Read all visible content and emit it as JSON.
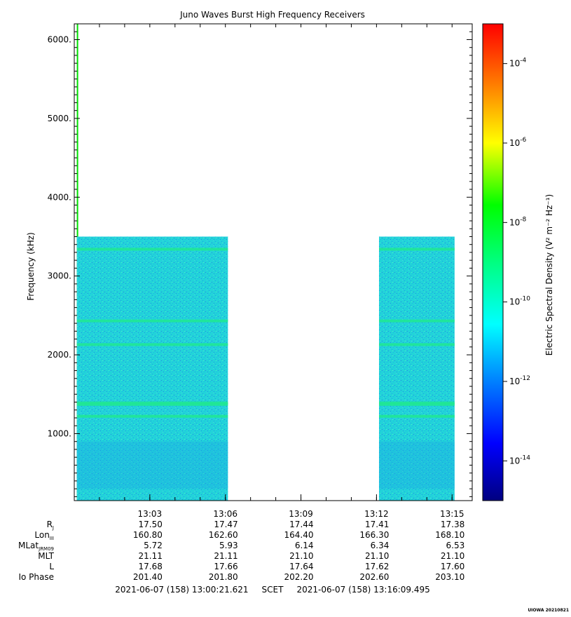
{
  "chart_data": {
    "type": "heatmap",
    "title": "Juno Waves Burst High Frequency Receivers",
    "ylabel": "Frequency (kHz)",
    "ylim": [
      150,
      6200
    ],
    "y_ticks": [
      {
        "value": 1000,
        "label": "1000."
      },
      {
        "value": 2000,
        "label": "2000."
      },
      {
        "value": 3000,
        "label": "3000."
      },
      {
        "value": 4000,
        "label": "4000."
      },
      {
        "value": 5000,
        "label": "5000."
      },
      {
        "value": 6000,
        "label": "6000."
      }
    ],
    "time_range": [
      "13:00:21.621",
      "13:16:09.495"
    ],
    "x_ticks": [
      "13:03",
      "13:06",
      "13:09",
      "13:12",
      "13:15"
    ],
    "x_tick_minutes": [
      3,
      6,
      9,
      12,
      15
    ],
    "data_blocks": [
      {
        "t_start_min": 0.1,
        "t_end_min": 0.15,
        "f_min": 150,
        "f_max": 6200,
        "kind": "line"
      },
      {
        "t_start_min": 0.1,
        "t_end_min": 6.1,
        "f_min": 150,
        "f_max": 3500,
        "kind": "field"
      },
      {
        "t_start_min": 12.1,
        "t_end_min": 15.1,
        "f_min": 150,
        "f_max": 3500,
        "kind": "field"
      }
    ],
    "emission_lines_khz": [
      3340,
      2430,
      2130,
      1390,
      1220,
      1370
    ],
    "colorbar": {
      "label": "Electric Spectral Density (V² m⁻² Hz⁻¹)",
      "scale": "log",
      "range_exponent": [
        -15,
        -3
      ],
      "ticks": [
        {
          "exp": -4,
          "label": "-4"
        },
        {
          "exp": -6,
          "label": "-6"
        },
        {
          "exp": -8,
          "label": "-8"
        },
        {
          "exp": -10,
          "label": "-10"
        },
        {
          "exp": -12,
          "label": "-12"
        },
        {
          "exp": -14,
          "label": "-14"
        }
      ]
    },
    "ephemeris": {
      "rows": [
        {
          "label": "R",
          "sub": "J",
          "values": [
            "17.50",
            "17.47",
            "17.44",
            "17.41",
            "17.38"
          ]
        },
        {
          "label": "Lon",
          "sub": "III",
          "values": [
            "160.80",
            "162.60",
            "164.40",
            "166.30",
            "168.10"
          ]
        },
        {
          "label": "MLat",
          "sub": "JRM09",
          "values": [
            "5.72",
            "5.93",
            "6.14",
            "6.34",
            "6.53"
          ]
        },
        {
          "label": "MLT",
          "sub": "",
          "values": [
            "21.11",
            "21.11",
            "21.10",
            "21.10",
            "21.10"
          ]
        },
        {
          "label": "L",
          "sub": "",
          "values": [
            "17.68",
            "17.66",
            "17.64",
            "17.62",
            "17.60"
          ]
        },
        {
          "label": "Io Phase",
          "sub": "",
          "values": [
            "201.40",
            "201.80",
            "202.20",
            "202.60",
            "203.10"
          ]
        }
      ]
    },
    "footer": "2021-06-07 (158) 13:00:21.621     SCET     2021-06-07 (158) 13:16:09.495",
    "stamp": "UIOWA 20210821"
  }
}
